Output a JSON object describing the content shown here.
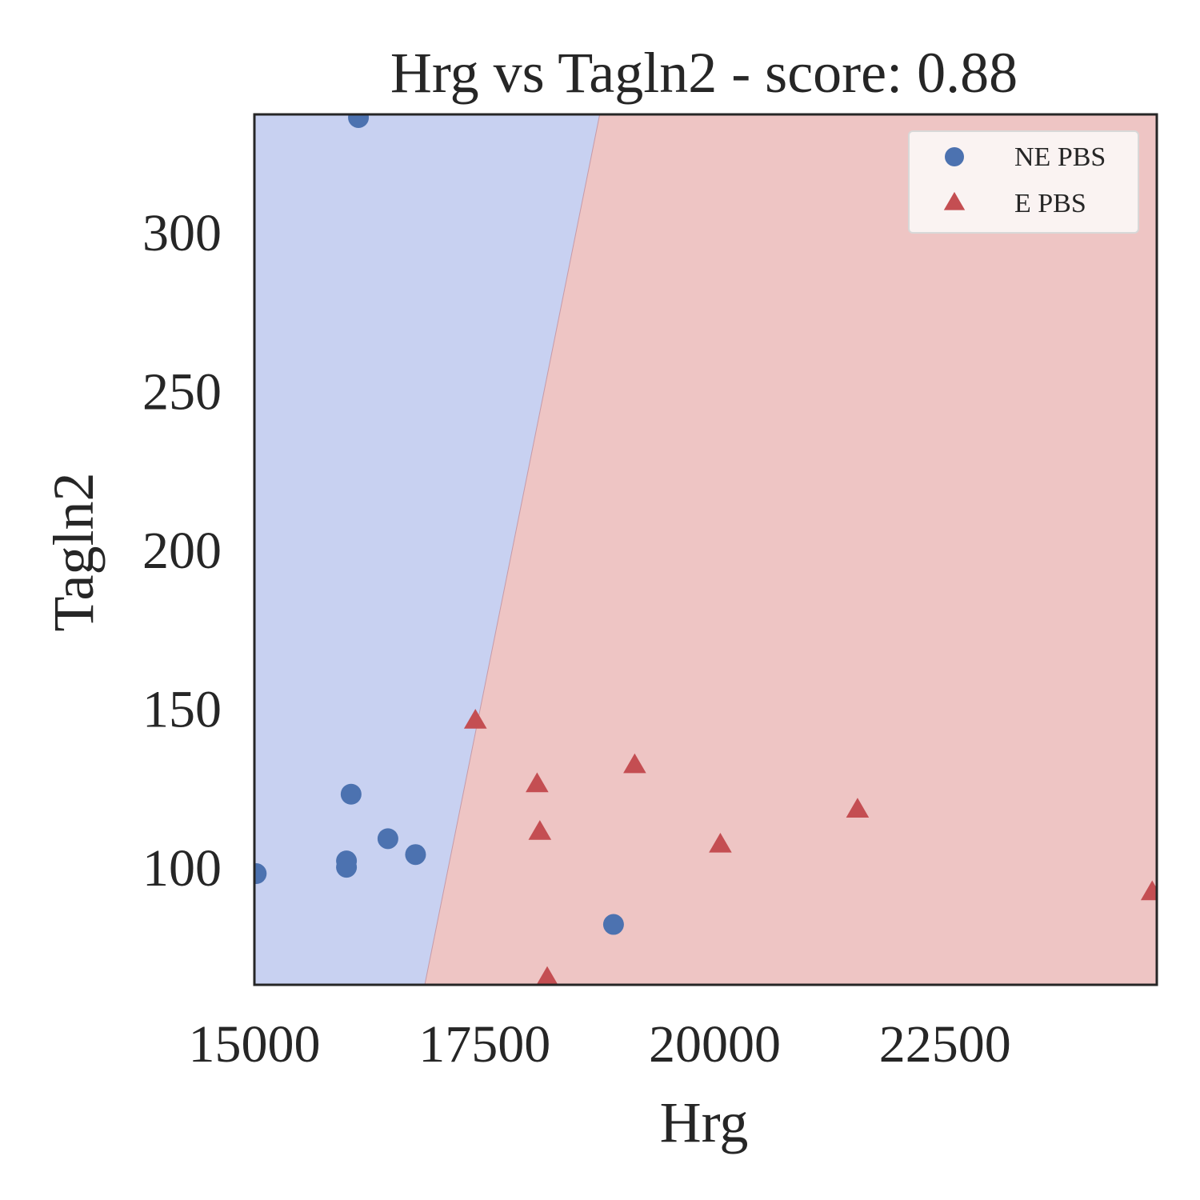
{
  "chart_data": {
    "type": "scatter",
    "title": "Hrg vs Tagln2 - score: 0.88",
    "xlabel": "Hrg",
    "ylabel": "Tagln2",
    "xlim": [
      15000,
      24800
    ],
    "ylim": [
      63,
      337
    ],
    "xticks": [
      15000,
      17500,
      20000,
      22500
    ],
    "yticks": [
      100,
      150,
      200,
      250,
      300
    ],
    "grid": false,
    "legend_position": "top-right",
    "decision_boundary": [
      [
        16850,
        63
      ],
      [
        18750,
        337
      ]
    ],
    "regions": [
      {
        "label": "NE PBS",
        "side": "left",
        "color": "#c8d1f1"
      },
      {
        "label": "E PBS",
        "side": "right",
        "color": "#eec5c4"
      }
    ],
    "series": [
      {
        "name": "NE PBS",
        "marker": "circle",
        "color": "#4c72b0",
        "points": [
          [
            16130,
            336
          ],
          [
            16050,
            123
          ],
          [
            16450,
            109
          ],
          [
            16750,
            104
          ],
          [
            16000,
            102
          ],
          [
            16000,
            100
          ],
          [
            15020,
            98
          ],
          [
            18900,
            82
          ]
        ]
      },
      {
        "name": "E PBS",
        "marker": "triangle",
        "color": "#c44e52",
        "points": [
          [
            17400,
            146
          ],
          [
            18070,
            126
          ],
          [
            19130,
            132
          ],
          [
            18100,
            111
          ],
          [
            20060,
            107
          ],
          [
            21550,
            118
          ],
          [
            18180,
            65
          ],
          [
            24750,
            92
          ]
        ]
      }
    ]
  }
}
